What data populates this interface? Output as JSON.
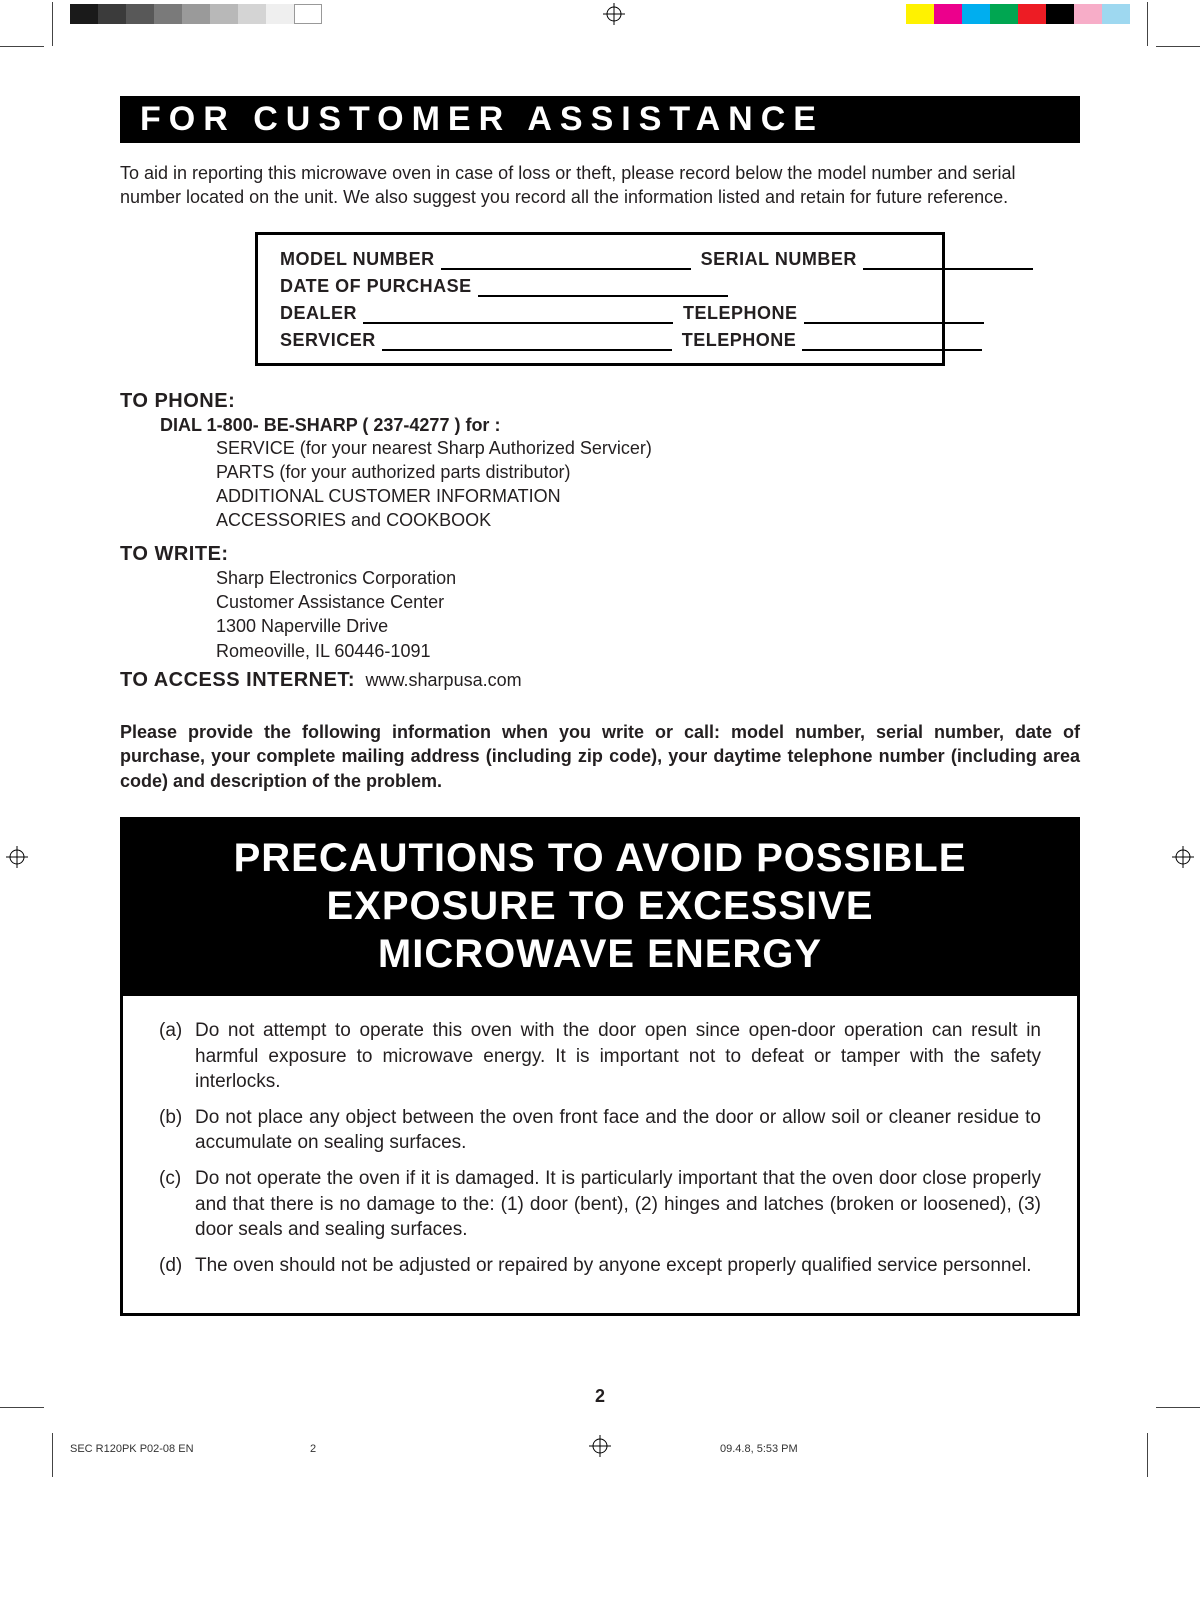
{
  "colorbar": {
    "left_swatches": [
      "#1a1a1a",
      "#3b3b3b",
      "#585858",
      "#7a7a7a",
      "#9a9a9a",
      "#b8b8b8",
      "#d4d4d4",
      "#efefef",
      "#ffffff"
    ],
    "right_swatches": [
      "#fff200",
      "#ec008c",
      "#00aeef",
      "#00a651",
      "#ed1c24",
      "#000000",
      "#f7adc8",
      "#9ed8f0"
    ],
    "swatch_w": 28,
    "swatch_h": 20
  },
  "crop_color": "#555555",
  "title": "FOR CUSTOMER ASSISTANCE",
  "intro": "To aid in reporting this microwave oven in case of loss or theft, please record below the model number and serial number located on the unit. We also suggest you record all the information listed and retain for future reference.",
  "record": {
    "model_label": "MODEL NUMBER",
    "serial_label": "SERIAL NUMBER",
    "date_label": "DATE OF PURCHASE",
    "dealer_label": "DEALER",
    "servicer_label": "SERVICER",
    "phone_label": "TELEPHONE",
    "line_widths": {
      "model": 250,
      "serial": 170,
      "date": 250,
      "dealer": 310,
      "dealer_phone": 180,
      "servicer": 290,
      "servicer_phone": 180
    }
  },
  "to_phone": {
    "heading": "TO PHONE:",
    "dial": "DIAL 1-800- BE-SHARP ( 237-4277 ) for :",
    "lines": [
      "SERVICE (for your nearest Sharp Authorized Servicer)",
      "PARTS (for your authorized parts distributor)",
      "ADDITIONAL CUSTOMER INFORMATION",
      "ACCESSORIES and COOKBOOK"
    ]
  },
  "to_write": {
    "heading": "TO WRITE:",
    "lines": [
      "Sharp Electronics Corporation",
      "Customer Assistance Center",
      "1300 Naperville Drive",
      "Romeoville, IL 60446-1091"
    ]
  },
  "to_internet": {
    "heading": "TO ACCESS INTERNET:",
    "url": "www.sharpusa.com"
  },
  "bold_para": "Please provide the following information when you write or call: model number, serial number, date of purchase, your complete mailing address (including zip code), your daytime telephone number (including area code) and description of the problem.",
  "precautions": {
    "header_l1": "PRECAUTIONS TO AVOID POSSIBLE",
    "header_l2": "EXPOSURE TO EXCESSIVE",
    "header_l3": "MICROWAVE ENERGY",
    "items": [
      {
        "lbl": "(a)",
        "txt": "Do not attempt to operate this oven with the door open since open-door operation can result in harmful exposure to microwave energy. It is important not to defeat or tamper with the safety interlocks."
      },
      {
        "lbl": "(b)",
        "txt": "Do not place any object between the oven front face and the door or allow soil or cleaner residue to accumulate on sealing surfaces."
      },
      {
        "lbl": "(c)",
        "txt": "Do not operate the oven if it is damaged. It is particularly important that the oven door close properly and that there is no damage to the: (1) door (bent), (2) hinges and latches (broken or loosened), (3) door seals and sealing surfaces."
      },
      {
        "lbl": "(d)",
        "txt": "The oven should not be adjusted or repaired by anyone except properly qualified service personnel."
      }
    ]
  },
  "page_number": "2",
  "footer": {
    "left": "SEC R120PK P02-08 EN",
    "mid": "2",
    "right": "09.4.8, 5:53 PM"
  }
}
